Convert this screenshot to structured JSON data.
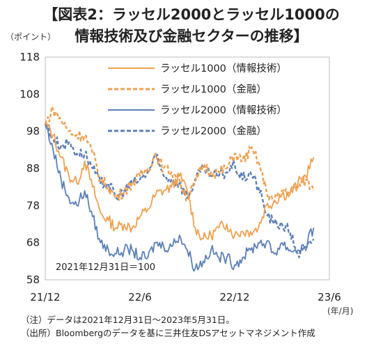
{
  "title": {
    "line1": "【図表2：ラッセル2000とラッセル1000の",
    "line2": "情報技術及び金融セクターの推移】"
  },
  "y_unit": "（ポイント）",
  "x_unit": "(年/月)",
  "annotation": "2021年12月31日＝100",
  "notes": [
    "（注）データは2021年12月31日～2023年5月31日。",
    "（出所）Bloombergのデータを基に三井住友DSアセットマネジメント作成"
  ],
  "colors": {
    "orange": "#F0A050",
    "blue": "#5B7FB8"
  },
  "chart_data": {
    "type": "line",
    "title": "【図表2：ラッセル2000とラッセル1000の情報技術及び金融セクターの推移】",
    "ylabel": "（ポイント）",
    "xlabel": "(年/月)",
    "ylim": [
      58,
      118
    ],
    "yticks": [
      58,
      68,
      78,
      88,
      98,
      108,
      118
    ],
    "xlim": [
      "2021-12",
      "2023-06"
    ],
    "xticks": [
      "21/12",
      "22/6",
      "22/12",
      "23/6"
    ],
    "grid": false,
    "legend_position": "top-right",
    "series": [
      {
        "name": "ラッセル1000（情報技術）",
        "color": "#F0A050",
        "style": "solid",
        "x": [
          0,
          0.5,
          1,
          1.5,
          2,
          2.5,
          3,
          3.5,
          4,
          4.5,
          5,
          5.5,
          6,
          6.5,
          7,
          7.5,
          8,
          8.5,
          9,
          9.5,
          10,
          10.5,
          11,
          11.5,
          12,
          12.5,
          13,
          13.5,
          14,
          14.5,
          15,
          15.5,
          16,
          16.5,
          17
        ],
        "values": [
          100,
          97,
          91,
          86,
          84,
          90,
          83,
          76,
          74,
          72,
          73,
          72,
          75,
          77,
          81,
          82,
          83,
          86,
          82,
          72,
          69,
          70,
          72,
          73,
          70,
          71,
          71,
          72,
          78,
          79,
          81,
          81,
          84,
          86,
          91
        ]
      },
      {
        "name": "ラッセル1000（金融）",
        "color": "#F0A050",
        "style": "dashed",
        "x": [
          0,
          0.5,
          1,
          1.5,
          2,
          2.5,
          3,
          3.5,
          4,
          4.5,
          5,
          5.5,
          6,
          6.5,
          7,
          7.5,
          8,
          8.5,
          9,
          9.5,
          10,
          10.5,
          11,
          11.5,
          12,
          12.5,
          13,
          13.5,
          14,
          14.5,
          15,
          15.5,
          16,
          16.5,
          17
        ],
        "values": [
          100,
          104,
          101,
          98,
          97,
          97,
          92,
          85,
          83,
          80,
          82,
          84,
          86,
          88,
          92,
          88,
          87,
          85,
          80,
          84,
          89,
          87,
          87,
          88,
          92,
          90,
          93,
          90,
          82,
          79,
          82,
          82,
          83,
          85,
          82
        ]
      },
      {
        "name": "ラッセル2000（情報技術）",
        "color": "#5B7FB8",
        "style": "solid",
        "x": [
          0,
          0.5,
          1,
          1.5,
          2,
          2.5,
          3,
          3.5,
          4,
          4.5,
          5,
          5.5,
          6,
          6.5,
          7,
          7.5,
          8,
          8.5,
          9,
          9.5,
          10,
          10.5,
          11,
          11.5,
          12,
          12.5,
          13,
          13.5,
          14,
          14.5,
          15,
          15.5,
          16,
          16.5,
          17
        ],
        "values": [
          100,
          93,
          85,
          80,
          78,
          82,
          75,
          68,
          66,
          65,
          66,
          66,
          64,
          64,
          68,
          67,
          67,
          70,
          66,
          61,
          63,
          66,
          64,
          64,
          62,
          64,
          66,
          68,
          68,
          65,
          68,
          66,
          66,
          67,
          72
        ]
      },
      {
        "name": "ラッセル2000（金融）",
        "color": "#5B7FB8",
        "style": "dashed",
        "x": [
          0,
          0.5,
          1,
          1.5,
          2,
          2.5,
          3,
          3.5,
          4,
          4.5,
          5,
          5.5,
          6,
          6.5,
          7,
          7.5,
          8,
          8.5,
          9,
          9.5,
          10,
          10.5,
          11,
          11.5,
          12,
          12.5,
          13,
          13.5,
          14,
          14.5,
          15,
          15.5,
          16,
          16.5,
          17
        ],
        "values": [
          100,
          96,
          94,
          95,
          92,
          92,
          88,
          84,
          84,
          80,
          82,
          84,
          85,
          87,
          91,
          86,
          85,
          84,
          80,
          85,
          88,
          86,
          86,
          87,
          89,
          85,
          87,
          83,
          76,
          73,
          73,
          71,
          65,
          66,
          69
        ]
      }
    ]
  }
}
